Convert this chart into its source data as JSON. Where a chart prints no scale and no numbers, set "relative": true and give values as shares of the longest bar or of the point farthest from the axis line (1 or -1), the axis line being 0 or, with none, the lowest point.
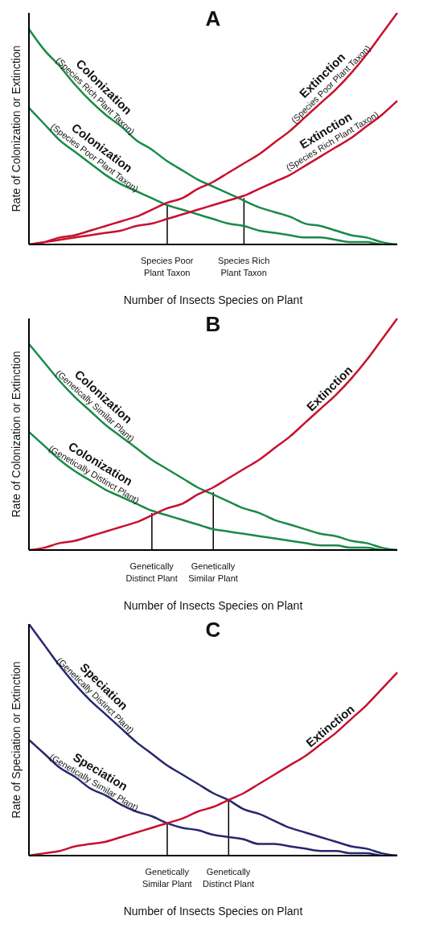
{
  "chart_data": [
    {
      "type": "line",
      "title": "A",
      "xlabel": "Number of Insects Species on Plant",
      "ylabel": "Rate of Colonization or Extinction",
      "relative": true,
      "categories": [
        null,
        null,
        null,
        null,
        null,
        null,
        null,
        null,
        null,
        "Species Poor Plant Taxon",
        null,
        null,
        null,
        null,
        "Species Rich Plant Taxon",
        null,
        null,
        null,
        null,
        null,
        null,
        null,
        null,
        null,
        null
      ],
      "series": [
        {
          "name": "Colonization (Species Rich Plant Taxon)",
          "color": "#1a8a47",
          "values": [
            0.93,
            0.84,
            0.77,
            0.69,
            0.62,
            0.56,
            0.51,
            0.45,
            0.41,
            0.36,
            0.32,
            0.28,
            0.25,
            0.22,
            0.19,
            0.16,
            0.14,
            0.12,
            0.09,
            0.08,
            0.06,
            0.04,
            0.03,
            0.01,
            0
          ]
        },
        {
          "name": "Colonization (Species Poor Plant Taxon)",
          "color": "#1a8a47",
          "values": [
            0.59,
            0.52,
            0.45,
            0.4,
            0.35,
            0.3,
            0.26,
            0.23,
            0.2,
            0.17,
            0.15,
            0.13,
            0.11,
            0.09,
            0.08,
            0.06,
            0.05,
            0.04,
            0.03,
            0.03,
            0.02,
            0.01,
            0.01,
            0,
            0
          ]
        },
        {
          "name": "Extinction (Species Poor Plant Taxon)",
          "color": "#c8102e",
          "values": [
            0,
            0.01,
            0.03,
            0.04,
            0.06,
            0.08,
            0.1,
            0.12,
            0.15,
            0.18,
            0.2,
            0.24,
            0.27,
            0.31,
            0.35,
            0.39,
            0.44,
            0.49,
            0.55,
            0.61,
            0.67,
            0.74,
            0.82,
            0.91,
            1
          ]
        },
        {
          "name": "Extinction (Species Rich Plant Taxon)",
          "color": "#c8102e",
          "values": [
            0,
            0.01,
            0.02,
            0.03,
            0.04,
            0.05,
            0.06,
            0.08,
            0.09,
            0.11,
            0.13,
            0.15,
            0.17,
            0.19,
            0.21,
            0.24,
            0.27,
            0.3,
            0.34,
            0.38,
            0.42,
            0.46,
            0.51,
            0.56,
            0.62
          ]
        },
        {
          "type": "bar",
          "color": "#000000",
          "values": [
            null,
            null,
            null,
            null,
            null,
            null,
            null,
            null,
            null,
            0.17,
            null,
            null,
            null,
            null,
            0.2,
            null,
            null,
            null,
            null,
            null,
            null,
            null,
            null,
            null,
            null
          ]
        }
      ]
    },
    {
      "type": "line",
      "title": "B",
      "xlabel": "Number of Insects Species on Plant",
      "ylabel": "Rate of Colonization or Extinction",
      "relative": true,
      "categories": [
        null,
        null,
        null,
        null,
        null,
        null,
        null,
        null,
        "Genetically Distinct Plant",
        null,
        null,
        null,
        "Genetically Similar Plant",
        null,
        null,
        null,
        null,
        null,
        null,
        null,
        null,
        null,
        null,
        null,
        null
      ],
      "series": [
        {
          "name": "Colonization (Genetically Similar Plant)",
          "color": "#1a8a47",
          "values": [
            0.89,
            0.81,
            0.73,
            0.66,
            0.6,
            0.54,
            0.49,
            0.44,
            0.39,
            0.35,
            0.31,
            0.27,
            0.24,
            0.21,
            0.18,
            0.16,
            0.13,
            0.11,
            0.09,
            0.07,
            0.06,
            0.04,
            0.03,
            0.01,
            0
          ]
        },
        {
          "name": "Colonization (Genetically Distinct Plant)",
          "color": "#1a8a47",
          "values": [
            0.51,
            0.45,
            0.39,
            0.34,
            0.3,
            0.26,
            0.23,
            0.2,
            0.17,
            0.15,
            0.13,
            0.11,
            0.09,
            0.08,
            0.07,
            0.06,
            0.05,
            0.04,
            0.03,
            0.02,
            0.02,
            0.01,
            0.01,
            0,
            0
          ]
        },
        {
          "name": "Extinction",
          "color": "#c8102e",
          "values": [
            0,
            0.01,
            0.03,
            0.04,
            0.06,
            0.08,
            0.1,
            0.12,
            0.15,
            0.18,
            0.2,
            0.24,
            0.27,
            0.31,
            0.35,
            0.39,
            0.44,
            0.49,
            0.55,
            0.61,
            0.67,
            0.74,
            0.82,
            0.91,
            1
          ]
        },
        {
          "type": "bar",
          "color": "#000000",
          "values": [
            null,
            null,
            null,
            null,
            null,
            null,
            null,
            null,
            0.16,
            null,
            null,
            null,
            0.25,
            null,
            null,
            null,
            null,
            null,
            null,
            null,
            null,
            null,
            null,
            null,
            null
          ]
        }
      ]
    },
    {
      "type": "line",
      "title": "C",
      "xlabel": "Number of Insects Species on Plant",
      "ylabel": "Rate of Speciation or Extinction",
      "relative": true,
      "categories": [
        null,
        null,
        null,
        null,
        null,
        null,
        null,
        null,
        null,
        "Genetically Similar Plant",
        null,
        null,
        null,
        "Genetically Distinct Plant",
        null,
        null,
        null,
        null,
        null,
        null,
        null,
        null,
        null,
        null,
        null
      ],
      "series": [
        {
          "name": "Speciation (Genetically Distinct Plant)",
          "color": "#27276e",
          "values": [
            1,
            0.91,
            0.82,
            0.74,
            0.67,
            0.61,
            0.55,
            0.49,
            0.44,
            0.39,
            0.35,
            0.31,
            0.27,
            0.24,
            0.2,
            0.18,
            0.15,
            0.12,
            0.1,
            0.08,
            0.06,
            0.04,
            0.03,
            0.01,
            0
          ]
        },
        {
          "name": "Speciation (Genetically Similar Plant)",
          "color": "#27276e",
          "values": [
            0.5,
            0.44,
            0.38,
            0.34,
            0.29,
            0.26,
            0.22,
            0.19,
            0.17,
            0.14,
            0.12,
            0.11,
            0.09,
            0.08,
            0.07,
            0.05,
            0.05,
            0.04,
            0.03,
            0.02,
            0.02,
            0.01,
            0.01,
            0,
            0
          ]
        },
        {
          "name": "Extinction",
          "color": "#c8102e",
          "values": [
            0,
            0.01,
            0.02,
            0.04,
            0.05,
            0.06,
            0.08,
            0.1,
            0.12,
            0.14,
            0.16,
            0.19,
            0.21,
            0.24,
            0.27,
            0.31,
            0.35,
            0.39,
            0.43,
            0.48,
            0.53,
            0.59,
            0.65,
            0.72,
            0.79
          ]
        },
        {
          "type": "bar",
          "color": "#000000",
          "values": [
            null,
            null,
            null,
            null,
            null,
            null,
            null,
            null,
            null,
            0.14,
            null,
            null,
            null,
            0.24,
            null,
            null,
            null,
            null,
            null,
            null,
            null,
            null,
            null,
            null,
            null
          ]
        }
      ]
    }
  ]
}
